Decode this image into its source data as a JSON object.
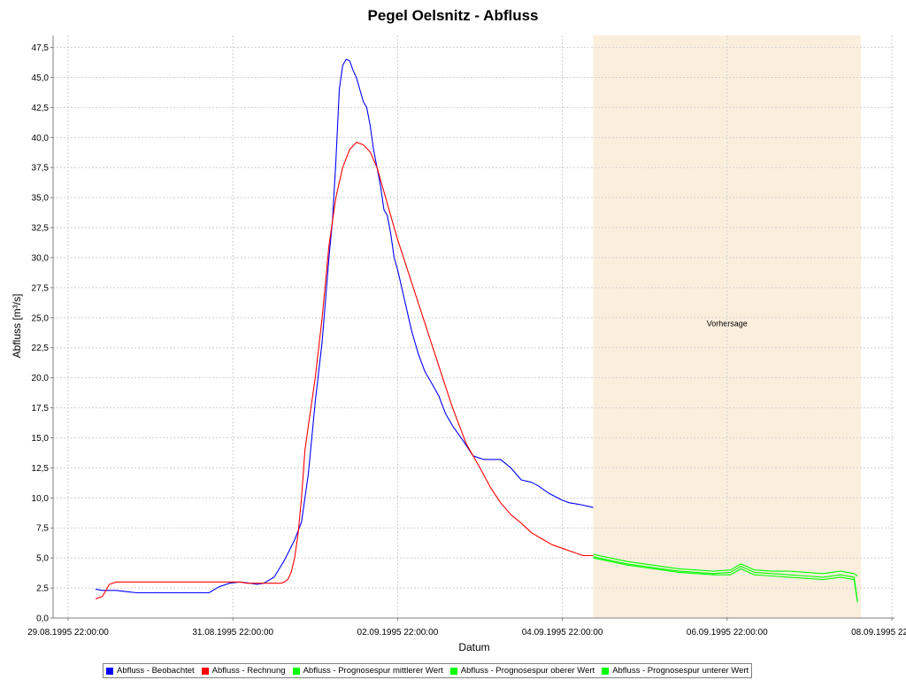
{
  "chart_data": {
    "type": "line",
    "title": "Pegel Oelsnitz - Abfluss",
    "xlabel": "Datum",
    "ylabel": "Abfluss [m³/s]",
    "x_unit": "hours since 29.08.1995 22:00",
    "xlim": [
      0,
      240
    ],
    "ylim": [
      0,
      48.5
    ],
    "yticks": [
      0,
      2.5,
      5,
      7.5,
      10,
      12.5,
      15,
      17.5,
      20,
      22.5,
      25,
      27.5,
      30,
      32.5,
      35,
      37.5,
      40,
      42.5,
      45,
      47.5
    ],
    "ytick_labels": [
      "0,0",
      "2,5",
      "5,0",
      "7,5",
      "10,0",
      "12,5",
      "15,0",
      "17,5",
      "20,0",
      "22,5",
      "25,0",
      "27,5",
      "30,0",
      "32,5",
      "35,0",
      "37,5",
      "40,0",
      "42,5",
      "45,0",
      "47,5"
    ],
    "xticks": [
      0,
      48,
      96,
      144,
      192,
      240
    ],
    "xtick_labels": [
      "29.08.1995 22:00:00",
      "31.08.1995 22:00:00",
      "02.09.1995 22:00:00",
      "04.09.1995 22:00:00",
      "06.09.1995 22:00:00",
      "08.09.1995 22:00:00"
    ],
    "grid": true,
    "legend_position": "bottom",
    "annotations": [
      {
        "type": "band",
        "x_from": 153,
        "x_to": 231,
        "color": "#FCEEDD",
        "label": "Vorhersage",
        "label_x": 192,
        "label_y": 24.5
      }
    ],
    "series": [
      {
        "name": "Abfluss - Beobachtet",
        "color": "#0000FF",
        "x": [
          8,
          10,
          14,
          17,
          20,
          23,
          26,
          30,
          34,
          38,
          41,
          44,
          47,
          50,
          53,
          55,
          57,
          60,
          63,
          66,
          68,
          70,
          72,
          74,
          76,
          77,
          78,
          79,
          80,
          81,
          82,
          83,
          84,
          85,
          86,
          87,
          88,
          89,
          90,
          91,
          92,
          93,
          94,
          95,
          96,
          98,
          100,
          102,
          104,
          106,
          108,
          110,
          112,
          115,
          118,
          121,
          123,
          126,
          129,
          132,
          135,
          137,
          140,
          142,
          144,
          146,
          148,
          150,
          153
        ],
        "y": [
          2.4,
          2.3,
          2.3,
          2.2,
          2.1,
          2.1,
          2.1,
          2.1,
          2.1,
          2.1,
          2.1,
          2.6,
          2.9,
          3.0,
          2.9,
          2.8,
          2.9,
          3.4,
          4.8,
          6.5,
          8.0,
          12.0,
          18.0,
          23.0,
          30.0,
          33.0,
          38.0,
          44.0,
          46.0,
          46.5,
          46.4,
          45.6,
          45.0,
          44.0,
          43.0,
          42.5,
          41.0,
          39.0,
          37.5,
          36.0,
          34.0,
          33.5,
          32.0,
          30.0,
          29.0,
          26.5,
          24.0,
          22.0,
          20.5,
          19.5,
          18.5,
          17.0,
          16.0,
          14.8,
          13.5,
          13.2,
          13.2,
          13.2,
          12.5,
          11.5,
          11.3,
          11.0,
          10.4,
          10.1,
          9.8,
          9.6,
          9.5,
          9.4,
          9.2
        ]
      },
      {
        "name": "Abfluss - Rechnung",
        "color": "#FF0000",
        "x": [
          8,
          10,
          12,
          14,
          17,
          20,
          23,
          26,
          30,
          34,
          38,
          42,
          46,
          48,
          50,
          52,
          54,
          56,
          58,
          60,
          62,
          63,
          64,
          65,
          66,
          67,
          68,
          69,
          70,
          72,
          74,
          76,
          78,
          80,
          82,
          84,
          86,
          88,
          90,
          92,
          94,
          96,
          100,
          104,
          108,
          112,
          116,
          120,
          123,
          126,
          129,
          132,
          135,
          138,
          141,
          144,
          147,
          150,
          153
        ],
        "y": [
          1.6,
          1.8,
          2.8,
          3.0,
          3.0,
          3.0,
          3.0,
          3.0,
          3.0,
          3.0,
          3.0,
          3.0,
          3.0,
          3.0,
          3.0,
          2.9,
          2.9,
          2.9,
          2.9,
          2.9,
          2.9,
          3.0,
          3.2,
          3.8,
          5.0,
          7.0,
          10.0,
          14.0,
          16.0,
          20.0,
          25.0,
          31.0,
          35.0,
          37.5,
          39.0,
          39.6,
          39.4,
          38.8,
          37.5,
          35.5,
          33.5,
          31.5,
          28.0,
          24.5,
          21.0,
          17.5,
          14.5,
          12.5,
          10.9,
          9.6,
          8.6,
          7.9,
          7.1,
          6.6,
          6.1,
          5.8,
          5.5,
          5.2,
          5.2
        ]
      },
      {
        "name": "Abfluss - Prognosespur mittlerer Wert",
        "color": "#00FF00",
        "x": [
          153,
          158,
          163,
          168,
          173,
          178,
          183,
          188,
          193,
          196,
          200,
          205,
          210,
          215,
          220,
          225,
          229,
          230
        ],
        "y": [
          5.1,
          4.8,
          4.5,
          4.3,
          4.1,
          3.9,
          3.8,
          3.7,
          3.8,
          4.3,
          3.8,
          3.7,
          3.6,
          3.5,
          3.4,
          3.6,
          3.4,
          1.4
        ]
      },
      {
        "name": "Abfluss - Prognosespur oberer Wert",
        "color": "#00FF00",
        "x": [
          153,
          158,
          163,
          168,
          173,
          178,
          183,
          188,
          193,
          196,
          200,
          205,
          210,
          215,
          220,
          225,
          229,
          230
        ],
        "y": [
          5.3,
          5.0,
          4.7,
          4.5,
          4.3,
          4.1,
          4.0,
          3.9,
          4.0,
          4.5,
          4.0,
          3.9,
          3.9,
          3.8,
          3.7,
          3.9,
          3.7,
          3.5
        ]
      },
      {
        "name": "Abfluss - Prognosespur unterer Wert",
        "color": "#00FF00",
        "x": [
          153,
          158,
          163,
          168,
          173,
          178,
          183,
          188,
          193,
          196,
          200,
          205,
          210,
          215,
          220,
          225,
          229,
          230
        ],
        "y": [
          5.0,
          4.7,
          4.4,
          4.2,
          4.0,
          3.8,
          3.7,
          3.6,
          3.6,
          4.1,
          3.6,
          3.5,
          3.4,
          3.3,
          3.2,
          3.4,
          3.2,
          1.3
        ]
      }
    ]
  }
}
